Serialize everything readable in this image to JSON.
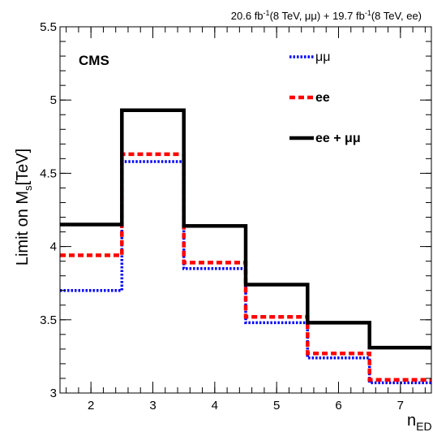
{
  "chart_data": {
    "type": "line",
    "subtype": "step",
    "header": {
      "lumi_mumu_value": "20.6 fb",
      "lumi_mumu_exp": "-1",
      "lumi_mumu_tail": "(8 TeV,  μμ) + ",
      "lumi_ee_value": "19.7 fb",
      "lumi_ee_exp": "-1",
      "lumi_ee_tail": "(8 TeV, ee)"
    },
    "experiment_label": "CMS",
    "ylabel_main": "Limit on M",
    "ylabel_sub": "s",
    "ylabel_unit": "[TeV]",
    "xlabel_main": "n",
    "xlabel_sub": "ED",
    "xlim": [
      1.5,
      7.5
    ],
    "ylim": [
      3.0,
      5.5
    ],
    "x_ticks": [
      2,
      3,
      4,
      5,
      6,
      7
    ],
    "y_ticks": [
      {
        "value": 3.0,
        "label": "3"
      },
      {
        "value": 3.5,
        "label": "3.5"
      },
      {
        "value": 4.0,
        "label": "4"
      },
      {
        "value": 4.5,
        "label": "4.5"
      },
      {
        "value": 5.0,
        "label": "5"
      },
      {
        "value": 5.5,
        "label": "5.5"
      }
    ],
    "bins": [
      2,
      3,
      4,
      5,
      6,
      7
    ],
    "bin_width": 1,
    "legend_position": "top-right",
    "series": [
      {
        "name": "μμ",
        "color": "#0000ff",
        "style": "dotted",
        "values": [
          3.7,
          4.58,
          3.85,
          3.48,
          3.24,
          3.07
        ]
      },
      {
        "name": "ee",
        "color": "#ff0000",
        "style": "dashed",
        "values": [
          3.94,
          4.63,
          3.89,
          3.52,
          3.27,
          3.09
        ]
      },
      {
        "name": "ee + μμ",
        "color": "#000000",
        "style": "solid",
        "values": [
          4.15,
          4.93,
          4.14,
          3.74,
          3.48,
          3.31
        ]
      }
    ]
  }
}
